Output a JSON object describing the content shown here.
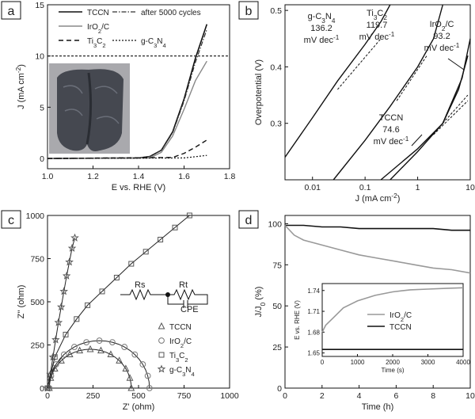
{
  "figure": {
    "panel_labels": [
      "a",
      "b",
      "c",
      "d"
    ]
  },
  "inset_c": {
    "labels": [
      "Rs",
      "Rt",
      "CPE"
    ]
  },
  "inset_d": {
    "ylabel": "E vs. RHE (V)",
    "xlabel": "Time (s)",
    "ticks_y": [
      "1.65",
      "1.68",
      "1.71",
      "1.74"
    ],
    "ticks_x": [
      "0",
      "1000",
      "2000",
      "3000",
      "4000"
    ],
    "legend": [
      "IrO2/C",
      "TCCN"
    ]
  },
  "chart_data": [
    {
      "panel": "a",
      "type": "line",
      "xlabel": "E vs. RHE (V)",
      "ylabel": "J (mA cm-2)",
      "xlim": [
        1.0,
        1.8
      ],
      "ylim": [
        -1,
        15
      ],
      "xticks": [
        "1.0",
        "1.2",
        "1.4",
        "1.6",
        "1.8"
      ],
      "yticks": [
        "0",
        "5",
        "10",
        "15"
      ],
      "reference_line_y": 10,
      "legend": [
        "TCCN",
        "after 5000 cycles",
        "IrO2/C",
        "Ti3C2",
        "g-C3N4"
      ],
      "series": [
        {
          "name": "TCCN",
          "x": [
            1.0,
            1.4,
            1.45,
            1.5,
            1.55,
            1.6,
            1.65,
            1.7
          ],
          "y": [
            0,
            0.05,
            0.2,
            0.8,
            2.6,
            5.8,
            9.8,
            13.1
          ]
        },
        {
          "name": "after 5000 cycles",
          "x": [
            1.0,
            1.4,
            1.45,
            1.5,
            1.55,
            1.6,
            1.65,
            1.7
          ],
          "y": [
            0,
            0.05,
            0.2,
            0.8,
            2.5,
            5.6,
            9.4,
            12.6
          ]
        },
        {
          "name": "IrO2/C",
          "x": [
            1.0,
            1.45,
            1.5,
            1.55,
            1.6,
            1.65,
            1.7
          ],
          "y": [
            0,
            0.05,
            0.6,
            2.2,
            4.8,
            7.6,
            9.5
          ]
        },
        {
          "name": "Ti3C2",
          "x": [
            1.0,
            1.55,
            1.6,
            1.65,
            1.7
          ],
          "y": [
            0,
            0.1,
            0.5,
            1.1,
            1.8
          ]
        },
        {
          "name": "g-C3N4",
          "x": [
            1.0,
            1.6,
            1.7
          ],
          "y": [
            0,
            0.05,
            0.3
          ]
        }
      ]
    },
    {
      "panel": "b",
      "type": "line",
      "xlabel": "J (mA cm-2)",
      "ylabel": "Overpotential (V)",
      "xscale": "log",
      "xlim": [
        0.003,
        10
      ],
      "ylim": [
        0.2,
        0.51
      ],
      "xticks": [
        "0.01",
        "0.1",
        "1",
        "10"
      ],
      "yticks": [
        "0.3",
        "0.4",
        "0.5"
      ],
      "annotations": [
        {
          "name": "g-C3N4",
          "slope": "136.2",
          "unit": "mV dec-1"
        },
        {
          "name": "Ti3C2",
          "slope": "119.7",
          "unit": "mV dec-1"
        },
        {
          "name": "IrO2/C",
          "slope": "93.2",
          "unit": "mV dec-1"
        },
        {
          "name": "TCCN",
          "slope": "74.6",
          "unit": "mV dec-1"
        }
      ],
      "series": [
        {
          "name": "g-C3N4",
          "x": [
            0.003,
            0.01,
            0.03,
            0.1,
            0.2,
            0.3
          ],
          "y": [
            0.24,
            0.31,
            0.375,
            0.44,
            0.48,
            0.51
          ]
        },
        {
          "name": "Ti3C2",
          "x": [
            0.025,
            0.1,
            0.3,
            1,
            2,
            3
          ],
          "y": [
            0.2,
            0.27,
            0.33,
            0.4,
            0.45,
            0.51
          ]
        },
        {
          "name": "IrO2/C",
          "x": [
            0.3,
            1,
            3,
            6,
            9
          ],
          "y": [
            0.2,
            0.25,
            0.3,
            0.36,
            0.42
          ]
        },
        {
          "name": "TCCN",
          "x": [
            0.2,
            1,
            3,
            7,
            10
          ],
          "y": [
            0.2,
            0.255,
            0.3,
            0.38,
            0.45
          ]
        }
      ]
    },
    {
      "panel": "c",
      "type": "scatter",
      "xlabel": "Z' (ohm)",
      "ylabel": "Z'' (ohm)",
      "xlim": [
        0,
        1000
      ],
      "ylim": [
        0,
        1000
      ],
      "xticks": [
        "0",
        "250",
        "500",
        "750",
        "1000"
      ],
      "yticks": [
        "0",
        "250",
        "500",
        "750",
        "1000"
      ],
      "legend": [
        "TCCN",
        "IrO2/C",
        "Ti3C2",
        "g-C3N4"
      ],
      "series": [
        {
          "name": "TCCN",
          "marker": "triangle",
          "semicircle": {
            "start": 10,
            "end": 460
          }
        },
        {
          "name": "IrO2/C",
          "marker": "circle",
          "semicircle": {
            "start": 10,
            "end": 560
          }
        },
        {
          "name": "Ti3C2",
          "marker": "square",
          "x": [
            0,
            40,
            100,
            160,
            220,
            300,
            380,
            460,
            540,
            620,
            700,
            780
          ],
          "y": [
            0,
            180,
            310,
            400,
            480,
            560,
            640,
            720,
            790,
            860,
            930,
            1000
          ]
        },
        {
          "name": "g-C3N4",
          "marker": "star",
          "x": [
            0,
            15,
            30,
            45,
            60,
            75,
            90,
            105,
            120,
            135,
            150
          ],
          "y": [
            0,
            80,
            180,
            280,
            380,
            470,
            560,
            650,
            730,
            810,
            870
          ]
        }
      ]
    },
    {
      "panel": "d",
      "type": "line",
      "xlabel": "Time (h)",
      "ylabel": "J/J0 (%)",
      "xlim": [
        0,
        10
      ],
      "ylim": [
        0,
        105
      ],
      "xticks": [
        "0",
        "2",
        "4",
        "6",
        "8",
        "10"
      ],
      "yticks": [
        "0",
        "25",
        "50",
        "75",
        "100"
      ],
      "series": [
        {
          "name": "TCCN",
          "x": [
            0,
            1,
            2,
            3,
            4,
            5,
            6,
            7,
            8,
            9,
            10
          ],
          "y": [
            99,
            99,
            98,
            98,
            97,
            97,
            97,
            97,
            97,
            96,
            96
          ]
        },
        {
          "name": "IrO2/C",
          "x": [
            0,
            0.5,
            1,
            2,
            3,
            4,
            5,
            6,
            7,
            8,
            9,
            10
          ],
          "y": [
            99,
            93,
            90,
            87,
            84,
            81,
            79,
            77,
            75,
            73,
            72,
            70
          ]
        }
      ],
      "inset": {
        "xlim": [
          0,
          4000
        ],
        "ylim": [
          1.645,
          1.75
        ],
        "series": [
          {
            "name": "IrO2/C",
            "x": [
              0,
              100,
              300,
              600,
              1000,
              1500,
              2000,
              2500,
              3000,
              3500,
              4000
            ],
            "y": [
              1.68,
              1.69,
              1.7,
              1.715,
              1.725,
              1.733,
              1.738,
              1.741,
              1.742,
              1.743,
              1.744
            ]
          },
          {
            "name": "TCCN",
            "x": [
              0,
              1000,
              2000,
              3000,
              4000
            ],
            "y": [
              1.655,
              1.655,
              1.655,
              1.655,
              1.655
            ]
          }
        ]
      }
    }
  ]
}
